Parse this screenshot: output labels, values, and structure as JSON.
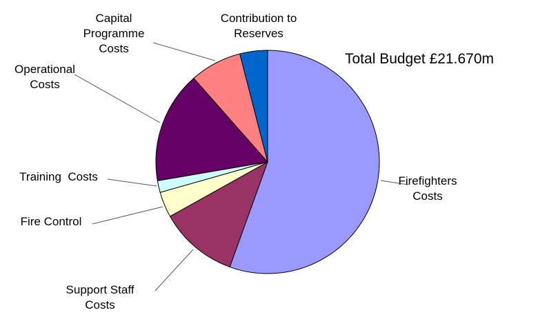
{
  "chart_data": {
    "type": "pie",
    "title": "Total Budget £21.670m",
    "start_angle": "12 o'clock, clockwise",
    "slices": [
      {
        "label": [
          "Firefighters",
          "Costs"
        ],
        "value": 55.5,
        "color": "#9999ff"
      },
      {
        "label": [
          "Support Staff",
          "Costs"
        ],
        "value": 11.4,
        "color": "#993366"
      },
      {
        "label": [
          "Fire Control"
        ],
        "value": 3.7,
        "color": "#ffffcc"
      },
      {
        "label": [
          "Training  Costs"
        ],
        "value": 1.7,
        "color": "#ccffff"
      },
      {
        "label": [
          "Operational",
          "Costs"
        ],
        "value": 16.2,
        "color": "#660066"
      },
      {
        "label": [
          "Capital",
          "Programme",
          "Costs"
        ],
        "value": 7.5,
        "color": "#ff8080"
      },
      {
        "label": [
          "Contribution to",
          "Reserves"
        ],
        "value": 4.0,
        "color": "#0066cc"
      }
    ],
    "units": "percent of total (estimated)"
  }
}
